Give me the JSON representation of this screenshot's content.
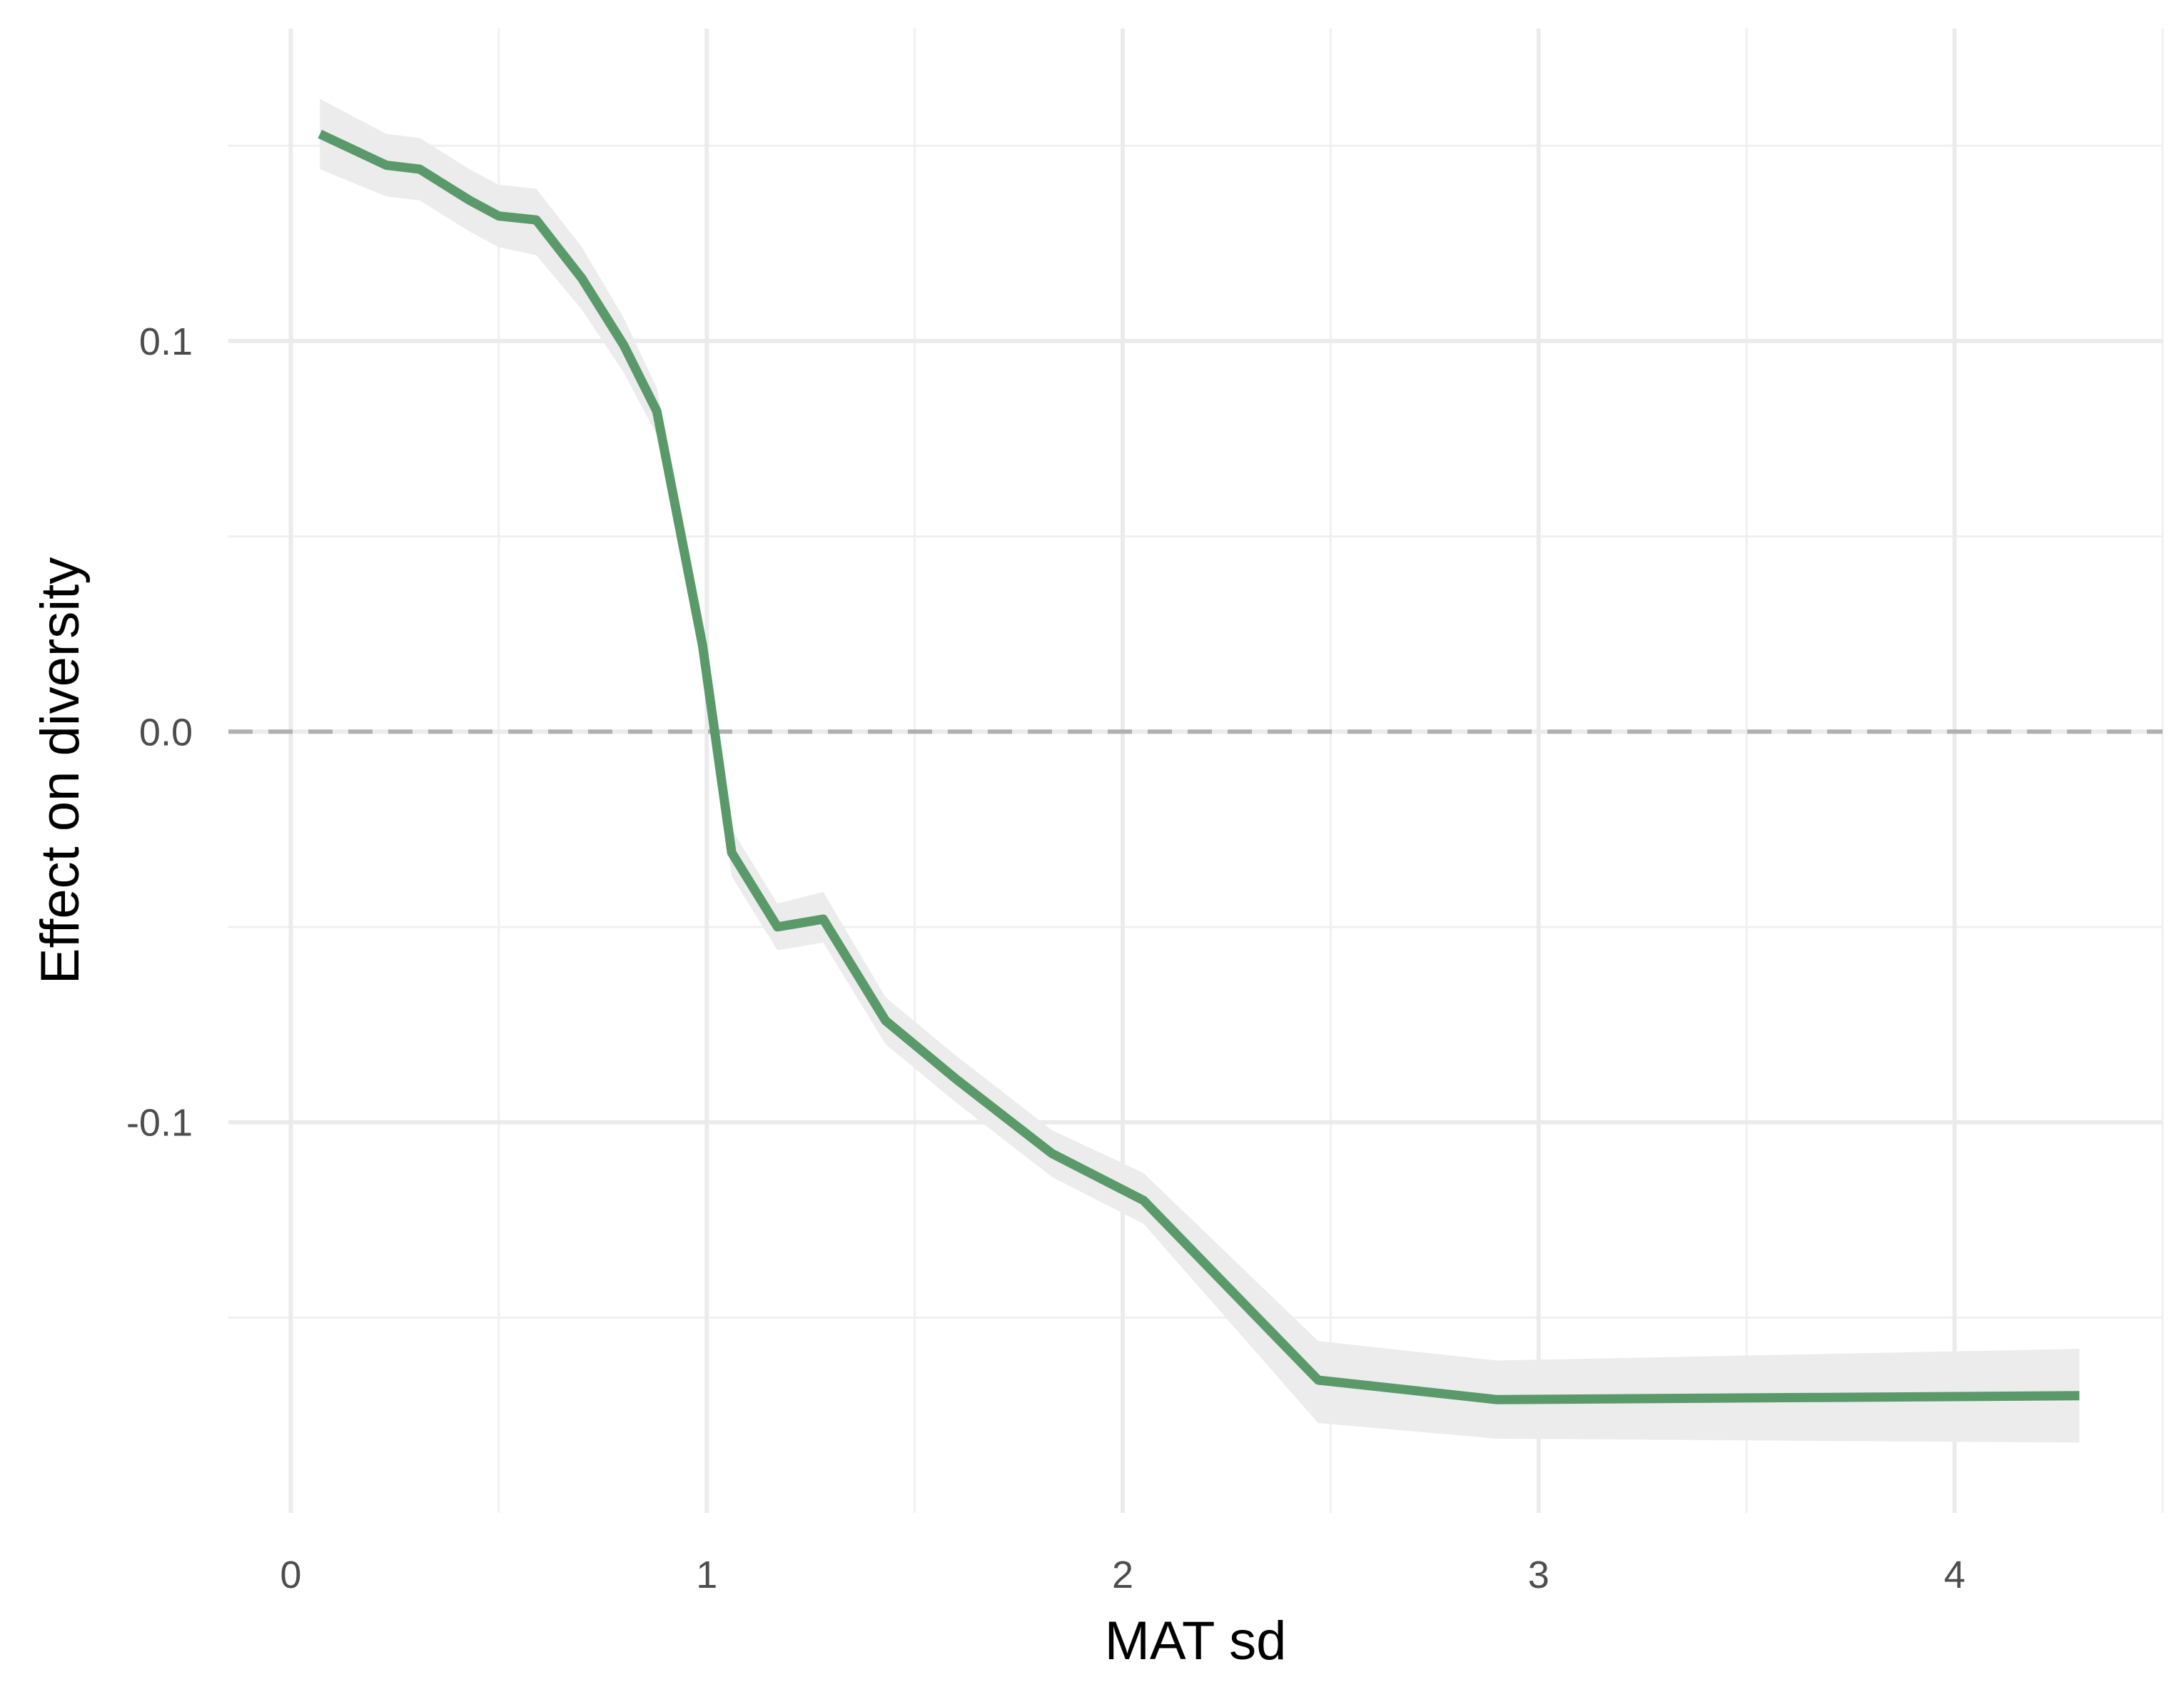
{
  "chart_data": {
    "type": "line",
    "title": "",
    "xlabel": "MAT sd",
    "ylabel": "Effect on diversity",
    "xlim": [
      -0.15,
      4.5
    ],
    "ylim": [
      -0.2,
      0.18
    ],
    "x_ticks": [
      0,
      1,
      2,
      3,
      4
    ],
    "x_tick_labels": [
      "0",
      "1",
      "2",
      "3",
      "4"
    ],
    "x_minor_ticks": [
      0.5,
      1.5,
      2.5,
      3.5,
      4.5
    ],
    "y_ticks": [
      -0.1,
      0.0,
      0.1
    ],
    "y_tick_labels": [
      "-0.1",
      "0.0",
      "0.1"
    ],
    "y_minor_ticks": [
      -0.15,
      -0.05,
      0.05,
      0.15
    ],
    "grid": true,
    "reference_line": {
      "y": 0.0,
      "style": "dashed",
      "color": "#b0b0b0"
    },
    "line_color": "#5a9a6a",
    "band_color": "#ececec",
    "series": [
      {
        "x": [
          0.07,
          0.23,
          0.31,
          0.43,
          0.5,
          0.59,
          0.7,
          0.8,
          0.88,
          0.99,
          1.06,
          1.17,
          1.28,
          1.43,
          1.6,
          1.83,
          2.05,
          2.47,
          2.9,
          4.3
        ],
        "y": [
          0.153,
          0.145,
          0.144,
          0.136,
          0.132,
          0.131,
          0.116,
          0.099,
          0.082,
          0.022,
          -0.031,
          -0.05,
          -0.048,
          -0.074,
          -0.089,
          -0.108,
          -0.12,
          -0.166,
          -0.171,
          -0.17
        ],
        "lower": [
          0.144,
          0.137,
          0.136,
          0.128,
          0.124,
          0.122,
          0.108,
          0.092,
          0.076,
          0.016,
          -0.037,
          -0.056,
          -0.054,
          -0.08,
          -0.095,
          -0.114,
          -0.126,
          -0.177,
          -0.181,
          -0.182
        ],
        "upper": [
          0.162,
          0.153,
          0.152,
          0.144,
          0.14,
          0.139,
          0.124,
          0.106,
          0.088,
          0.028,
          -0.025,
          -0.044,
          -0.041,
          -0.068,
          -0.083,
          -0.102,
          -0.113,
          -0.156,
          -0.161,
          -0.158
        ]
      }
    ]
  }
}
